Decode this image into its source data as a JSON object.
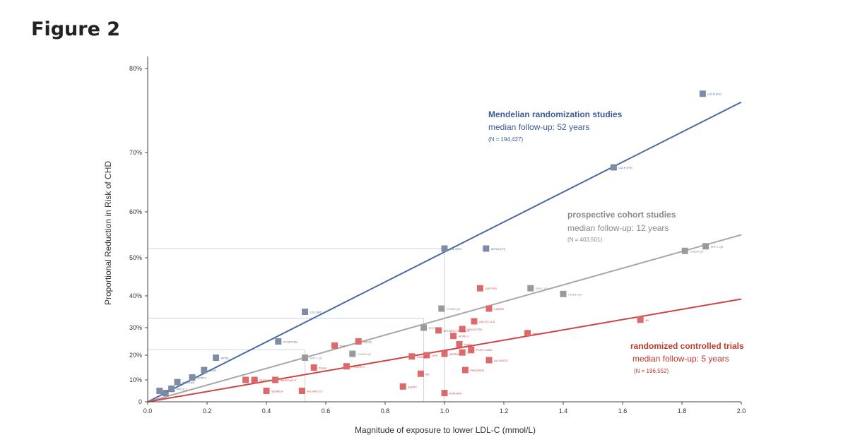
{
  "figure_title": "Figure 2",
  "chart_data": {
    "type": "scatter",
    "title": "",
    "xlabel": "Magnitude of exposure to lower LDL-C (mmol/L)",
    "ylabel": "Proportional Reduction in Risk of CHD",
    "xlim": [
      0,
      2.0
    ],
    "x_ticks": [
      "0.0",
      "0.2",
      "0.4",
      "0.6",
      "0.8",
      "1.0",
      "1.2",
      "1.4",
      "1.6",
      "1.8",
      "2.0"
    ],
    "y_ticks": [
      "0",
      "10%",
      "20%",
      "30%",
      "40%",
      "50%",
      "60%",
      "70%",
      "80%"
    ],
    "colors": {
      "mr": "#4a6aa0",
      "cohort": "#a8a8a8",
      "rct": "#cc4444",
      "mr_point": "#7f8ca8",
      "cohort_point": "#9a9a9a",
      "rct_point": "#dd6a6a",
      "guide": "#c9d3e6"
    },
    "series": [
      {
        "name": "Mendelian randomization studies",
        "subtitle": "median follow-up: 52 years",
        "n": "(N = 194,427)",
        "fit": {
          "x": [
            0,
            2.0
          ],
          "y": [
            0,
            76
          ]
        },
        "points": [
          {
            "x": 0.04,
            "y": 5,
            "label": "HMGCR"
          },
          {
            "x": 0.06,
            "y": 4,
            "label": ""
          },
          {
            "x": 0.08,
            "y": 6,
            "label": "NPC1L1"
          },
          {
            "x": 0.1,
            "y": 9,
            "label": "ABCG5/8"
          },
          {
            "x": 0.15,
            "y": 11,
            "label": "SORT1"
          },
          {
            "x": 0.19,
            "y": 14,
            "label": "LDLR"
          },
          {
            "x": 0.23,
            "y": 19,
            "label": "APOE"
          },
          {
            "x": 0.44,
            "y": 25,
            "label": "PCSK9 46L"
          },
          {
            "x": 0.53,
            "y": 35,
            "label": "LDL GRS"
          },
          {
            "x": 1.0,
            "y": 52,
            "label": "LDL GRS"
          },
          {
            "x": 1.14,
            "y": 52,
            "label": "APOB (FH)"
          },
          {
            "x": 1.57,
            "y": 67.5,
            "label": "LDLR (FH)"
          },
          {
            "x": 1.87,
            "y": 77,
            "label": "LDLR (FH)"
          }
        ]
      },
      {
        "name": "prospective cohort studies",
        "subtitle": "median follow-up: 12 years",
        "n": "(N = 403,501)",
        "fit": {
          "x": [
            0,
            2.0
          ],
          "y": [
            0,
            55
          ]
        },
        "points": [
          {
            "x": 0.53,
            "y": 19,
            "label": "ERFC Q2"
          },
          {
            "x": 0.69,
            "y": 20.5,
            "label": "CHIDN Q2"
          },
          {
            "x": 0.93,
            "y": 30,
            "label": "ERFC Q3"
          },
          {
            "x": 0.99,
            "y": 36,
            "label": "CHIDN Q3"
          },
          {
            "x": 1.29,
            "y": 42,
            "label": "ERFC Q4"
          },
          {
            "x": 1.4,
            "y": 40.5,
            "label": "CHIDN Q4"
          },
          {
            "x": 1.81,
            "y": 51.5,
            "label": "CHIDN Q5"
          },
          {
            "x": 1.88,
            "y": 52.5,
            "label": "ERFC Q5"
          }
        ]
      },
      {
        "name": "randomized controlled trials",
        "subtitle": "median follow-up: 5 years",
        "n": "(N = 196,552)",
        "fit": {
          "x": [
            0,
            2.0
          ],
          "y": [
            0,
            39
          ]
        },
        "points": [
          {
            "x": 0.33,
            "y": 10,
            "label": "4-D & ..."
          },
          {
            "x": 0.36,
            "y": 10,
            "label": "GISSI-P"
          },
          {
            "x": 0.4,
            "y": 5,
            "label": "SEARCH"
          },
          {
            "x": 0.43,
            "y": 10,
            "label": "IMPROVE-IT"
          },
          {
            "x": 0.52,
            "y": 5,
            "label": "ALLHAT-LLT"
          },
          {
            "x": 0.56,
            "y": 15,
            "label": "IDEAL"
          },
          {
            "x": 0.63,
            "y": 23.5,
            "label": "TNT"
          },
          {
            "x": 0.67,
            "y": 15.5,
            "label": "PROVE-IT"
          },
          {
            "x": 0.71,
            "y": 25,
            "label": "MEGA"
          },
          {
            "x": 0.86,
            "y": 7,
            "label": "ALERT"
          },
          {
            "x": 0.89,
            "y": 19.5,
            "label": "SHARP"
          },
          {
            "x": 0.92,
            "y": 12.5,
            "label": "4D"
          },
          {
            "x": 0.94,
            "y": 20,
            "label": "LIPS"
          },
          {
            "x": 0.98,
            "y": 29,
            "label": "AFCAPS/ TEXCAPS"
          },
          {
            "x": 1.0,
            "y": 20.5,
            "label": "ASPEN"
          },
          {
            "x": 1.0,
            "y": 4,
            "label": "AURORA"
          },
          {
            "x": 1.03,
            "y": 27,
            "label": "HOPE-3"
          },
          {
            "x": 1.05,
            "y": 24,
            "label": "CARE"
          },
          {
            "x": 1.06,
            "y": 21,
            "label": "LIPID"
          },
          {
            "x": 1.06,
            "y": 29.5,
            "label": "WOSCOPS"
          },
          {
            "x": 1.07,
            "y": 14,
            "label": "PROSPER"
          },
          {
            "x": 1.09,
            "y": 22,
            "label": "POST-CABG"
          },
          {
            "x": 1.1,
            "y": 32,
            "label": "ASCOT-LLA"
          },
          {
            "x": 1.12,
            "y": 42,
            "label": "JUPITER"
          },
          {
            "x": 1.15,
            "y": 36,
            "label": "CARDS"
          },
          {
            "x": 1.15,
            "y": 18,
            "label": "ALLIANCE"
          },
          {
            "x": 1.28,
            "y": 28,
            "label": "HPS"
          },
          {
            "x": 1.66,
            "y": 32.5,
            "label": "4S"
          }
        ]
      }
    ],
    "guide_lines": [
      {
        "x": 1.0,
        "y": 52
      },
      {
        "x": 0.93,
        "y": 33
      },
      {
        "x": 0.53,
        "y": 22
      }
    ],
    "annotations": {
      "mr": {
        "title": "Mendelian randomization studies",
        "sub": "median follow-up: 52 years",
        "n": "(N = 194,427)"
      },
      "cohort": {
        "title": "prospective cohort studies",
        "sub": "median follow-up: 12 years",
        "n": "(N = 403,501)"
      },
      "rct": {
        "title": "randomized controlled trials",
        "sub": "median follow-up: 5 years",
        "n": "(N = 196,552)"
      }
    }
  }
}
